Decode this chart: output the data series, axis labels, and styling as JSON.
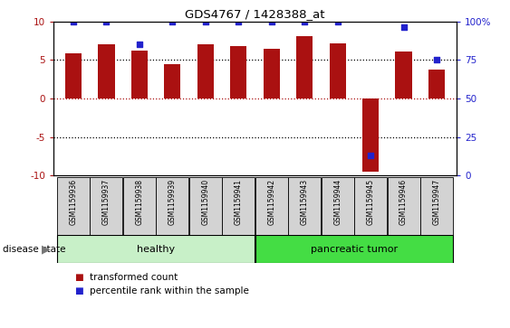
{
  "title": "GDS4767 / 1428388_at",
  "samples": [
    "GSM1159936",
    "GSM1159937",
    "GSM1159938",
    "GSM1159939",
    "GSM1159940",
    "GSM1159941",
    "GSM1159942",
    "GSM1159943",
    "GSM1159944",
    "GSM1159945",
    "GSM1159946",
    "GSM1159947"
  ],
  "bar_values": [
    5.8,
    7.0,
    6.2,
    4.4,
    7.0,
    6.8,
    6.4,
    8.1,
    7.1,
    -9.5,
    6.1,
    3.7
  ],
  "dot_percentile": [
    100,
    100,
    85,
    100,
    100,
    100,
    100,
    100,
    100,
    13,
    96,
    75
  ],
  "bar_color": "#AA1111",
  "dot_color": "#2222CC",
  "ylim_left": [
    -10,
    10
  ],
  "ylim_right": [
    0,
    100
  ],
  "yticks_left": [
    -10,
    -5,
    0,
    5,
    10
  ],
  "yticks_right": [
    0,
    25,
    50,
    75,
    100
  ],
  "groups": [
    {
      "label": "healthy",
      "start": 0,
      "end": 5,
      "color": "#C8F0C8"
    },
    {
      "label": "pancreatic tumor",
      "start": 6,
      "end": 11,
      "color": "#44DD44"
    }
  ],
  "disease_label": "disease state",
  "legend_bar_label": "transformed count",
  "legend_dot_label": "percentile rank within the sample",
  "bg_color": "#FFFFFF",
  "tick_label_bg": "#D3D3D3",
  "bar_width": 0.5
}
